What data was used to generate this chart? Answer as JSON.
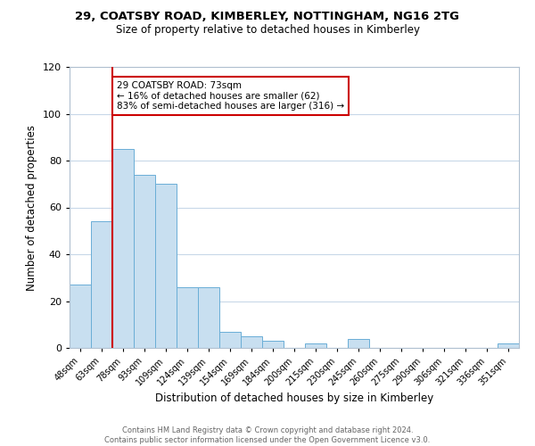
{
  "title_line1": "29, COATSBY ROAD, KIMBERLEY, NOTTINGHAM, NG16 2TG",
  "title_line2": "Size of property relative to detached houses in Kimberley",
  "xlabel": "Distribution of detached houses by size in Kimberley",
  "ylabel": "Number of detached properties",
  "footer_line1": "Contains HM Land Registry data © Crown copyright and database right 2024.",
  "footer_line2": "Contains public sector information licensed under the Open Government Licence v3.0.",
  "categories": [
    "48sqm",
    "63sqm",
    "78sqm",
    "93sqm",
    "109sqm",
    "124sqm",
    "139sqm",
    "154sqm",
    "169sqm",
    "184sqm",
    "200sqm",
    "215sqm",
    "230sqm",
    "245sqm",
    "260sqm",
    "275sqm",
    "290sqm",
    "306sqm",
    "321sqm",
    "336sqm",
    "351sqm"
  ],
  "values": [
    27,
    54,
    85,
    74,
    70,
    26,
    26,
    7,
    5,
    3,
    0,
    2,
    0,
    4,
    0,
    0,
    0,
    0,
    0,
    0,
    2
  ],
  "bar_color": "#c8dff0",
  "bar_edge_color": "#6aaed6",
  "property_line_color": "#cc0000",
  "property_line_x": 1.5,
  "annotation_title": "29 COATSBY ROAD: 73sqm",
  "annotation_line2": "← 16% of detached houses are smaller (62)",
  "annotation_line3": "83% of semi-detached houses are larger (316) →",
  "annotation_box_edge_color": "#cc0000",
  "annotation_box_face_color": "#ffffff",
  "ylim": [
    0,
    120
  ],
  "yticks": [
    0,
    20,
    40,
    60,
    80,
    100,
    120
  ],
  "background_color": "#ffffff",
  "grid_color": "#c8d8e8"
}
